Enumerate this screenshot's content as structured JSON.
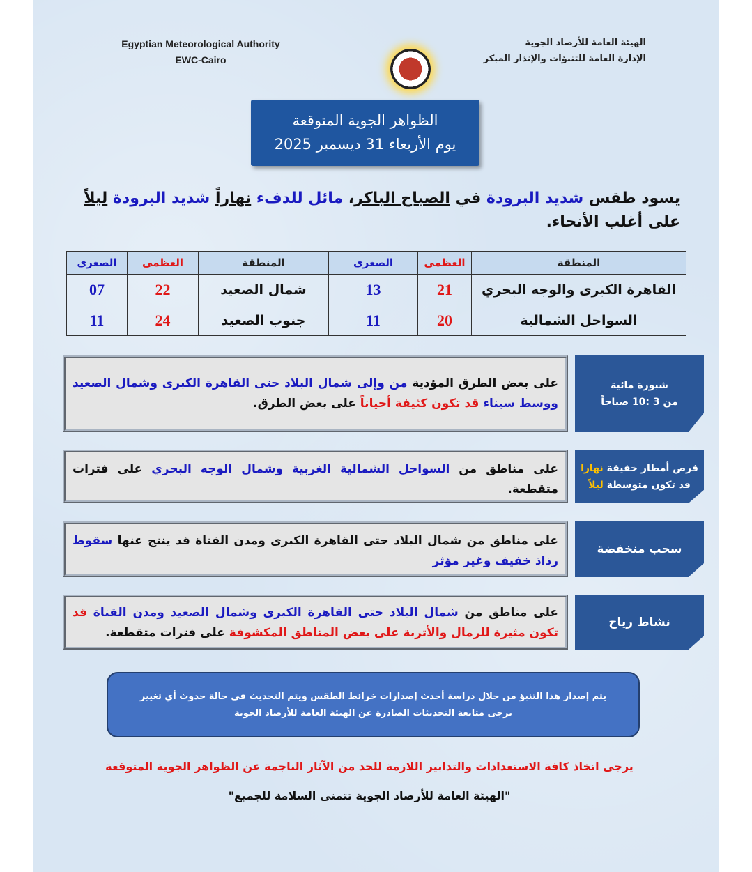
{
  "header": {
    "org_en": "Egyptian Meteorological Authority",
    "unit_en": "EWC-Cairo",
    "org_ar": "الهيئة العامة للأرصاد الجوية",
    "unit_ar": "الإدارة العامة للتنبؤات والإنذار المبكر",
    "logo_text": "EMA"
  },
  "title": {
    "line1": "الظواهر الجوية المتوقعة",
    "line2": "يوم الأربعاء 31 ديسمبر 2025"
  },
  "colors": {
    "blue": "#1a1ac0",
    "red": "#e01818",
    "yellow": "#ffc000",
    "black": "#111111",
    "label_bg": "#2b5798",
    "note_bg": "#4472c4"
  },
  "intro": [
    {
      "t": "يسود طقس ",
      "c": "black"
    },
    {
      "t": "شديد البرودة",
      "c": "blue"
    },
    {
      "t": " في ",
      "c": "black"
    },
    {
      "t": "الصباح الباكر",
      "c": "black",
      "u": true
    },
    {
      "t": "، ",
      "c": "black"
    },
    {
      "t": "مائل للدفء",
      "c": "blue"
    },
    {
      "t": " ",
      "c": "black"
    },
    {
      "t": "نهاراً",
      "c": "black",
      "u": true
    },
    {
      "t": " ",
      "c": "black"
    },
    {
      "t": "شديد البرودة",
      "c": "blue"
    },
    {
      "t": " ",
      "c": "black"
    },
    {
      "t": "ليلاً",
      "c": "black",
      "u": true
    },
    {
      "t": " على أغلب الأنحاء.",
      "c": "black"
    }
  ],
  "table": {
    "headers": {
      "region": "المنطقة",
      "max": "العظمى",
      "min": "الصغرى"
    },
    "rows": [
      {
        "r1": "القاهرة الكبرى والوجه البحري",
        "max1": "21",
        "min1": "13",
        "r2": "شمال الصعيد",
        "max2": "22",
        "min2": "07"
      },
      {
        "r1": "السواحل الشمالية",
        "max1": "20",
        "min1": "11",
        "r2": "جنوب الصعيد",
        "max2": "24",
        "min2": "11"
      }
    ]
  },
  "phenomena": [
    {
      "label": [
        {
          "t": "شبورة مائية",
          "c": "white"
        },
        {
          "t": "من 3 :10  صباحاً",
          "c": "white",
          "br": true
        }
      ],
      "text": [
        {
          "t": "على بعض الطرق المؤدية ",
          "c": "black"
        },
        {
          "t": "من وإلى شمال البلاد حتى القاهرة الكبرى وشمال الصعيد ووسط سيناء",
          "c": "blue"
        },
        {
          "t": " ",
          "c": "black"
        },
        {
          "t": "قد تكون كثيفة أحياناً",
          "c": "red"
        },
        {
          "t": " على بعض الطرق.",
          "c": "black"
        }
      ]
    },
    {
      "label": [
        {
          "t": "فرص أمطار خفيفة ",
          "c": "white"
        },
        {
          "t": "نهارا",
          "c": "yellow"
        },
        {
          "t": "قد تكون متوسطة ",
          "c": "white",
          "br": true
        },
        {
          "t": "ليلاً",
          "c": "yellow"
        }
      ],
      "text": [
        {
          "t": "على مناطق من ",
          "c": "black"
        },
        {
          "t": "السواحل الشمالية الغربية وشمال الوجه البحري",
          "c": "blue"
        },
        {
          "t": " على فترات متقطعة.",
          "c": "black"
        }
      ]
    },
    {
      "label": [
        {
          "t": "سحب منخفضة",
          "c": "white"
        }
      ],
      "text": [
        {
          "t": "على مناطق من شمال البلاد حتى القاهرة الكبرى ومدن القناة قد ينتج عنها ",
          "c": "black"
        },
        {
          "t": "سقوط رذاذ خفيف وغير مؤثر",
          "c": "blue"
        }
      ]
    },
    {
      "label": [
        {
          "t": "نشاط رياح",
          "c": "white"
        }
      ],
      "text": [
        {
          "t": "على مناطق من ",
          "c": "black"
        },
        {
          "t": "شمال البلاد حتى القاهرة الكبرى وشمال الصعيد ومدن القناة",
          "c": "blue"
        },
        {
          "t": " ",
          "c": "black"
        },
        {
          "t": "قد تكون مثيرة للرمال والأتربة على بعض المناطق المكشوفة",
          "c": "red"
        },
        {
          "t": " على فترات متقطعة.",
          "c": "black"
        }
      ]
    }
  ],
  "note": {
    "line1": "يتم إصدار هذا التنبؤ من خلال دراسة أحدث إصدارات خرائط الطقس ويتم التحديث في حالة حدوث أي تغيير",
    "line2": "يرجى متابعة التحديثات الصادرة عن الهيئة العامة للأرصاد الجوية"
  },
  "warning": "يرجى اتخاذ كافة الاستعدادات والتدابير اللازمة للحد من الآثار الناجمة عن الظواهر الجوية المتوقعة",
  "closing": "\"الهيئة العامة للأرصاد الجوية تتمنى السلامة للجميع\""
}
